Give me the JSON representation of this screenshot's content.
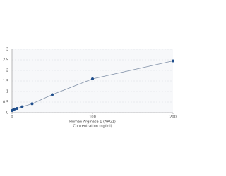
{
  "chart_data": {
    "type": "line",
    "x_label": "Human Arginase 1 (ARG1)",
    "x_label_2": "Concentration (ng/ml)",
    "x": [
      0,
      1.56,
      3.125,
      6.25,
      12.5,
      25,
      50,
      100,
      200
    ],
    "values": [
      0.1,
      0.13,
      0.17,
      0.2,
      0.28,
      0.42,
      0.85,
      1.6,
      2.45
    ],
    "color": "#1f4e8c",
    "line_color": "#7f8fa6",
    "xlim": [
      0,
      200
    ],
    "xticks": [
      0,
      100,
      200
    ],
    "ylim": [
      0,
      3
    ],
    "yticks": [
      0,
      0.5,
      1,
      1.5,
      2,
      2.5,
      3
    ],
    "grid": true
  }
}
